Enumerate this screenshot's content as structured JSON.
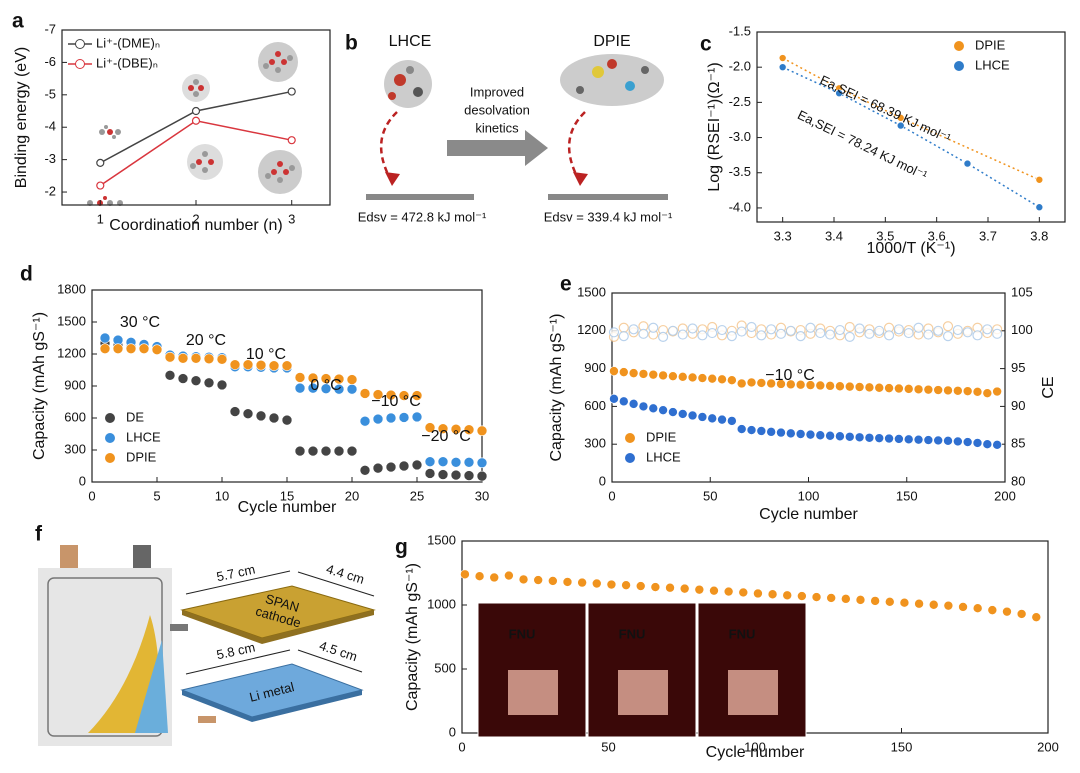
{
  "chart_data": [
    {
      "type": "line",
      "label": "a",
      "ylabel": "Binding energy (eV)",
      "xlabel": "Coordination number (n)",
      "xlim": [
        0.6,
        3.4
      ],
      "xticks": [
        1,
        2,
        3
      ],
      "ylim": [
        -1.6,
        -7
      ],
      "yticks": [
        -2,
        -3,
        -4,
        -5,
        -6,
        -7
      ],
      "legend": "upper left",
      "series": [
        {
          "name": "Li⁺-(DME)ₙ",
          "color": "#444444",
          "marker": "open",
          "x": [
            1,
            2,
            3
          ],
          "values": [
            -2.9,
            -4.5,
            -5.1
          ]
        },
        {
          "name": "Li⁺-(DBE)ₙ",
          "color": "#d9363e",
          "marker": "open",
          "x": [
            1,
            2,
            3
          ],
          "values": [
            -2.2,
            -4.2,
            -3.6
          ]
        }
      ]
    },
    {
      "type": "scatter",
      "label": "c",
      "ylabel": "Log (RSEI⁻¹)(Ω⁻¹)",
      "xlabel": "1000/T (K⁻¹)",
      "xlim": [
        3.25,
        3.85
      ],
      "xticks": [
        3.3,
        3.4,
        3.5,
        3.6,
        3.7,
        3.8
      ],
      "ylim": [
        -4.2,
        -1.5
      ],
      "yticks": [
        {
          "value": -4,
          "label": "-4.0"
        },
        -3.5,
        {
          "value": -3,
          "label": "-3.0"
        },
        -2.5,
        {
          "value": -2,
          "label": "-2.0"
        },
        -1.5
      ],
      "fit_line": true,
      "legend": "upper right",
      "annotations": [
        "Ea,SEI = 68.39 KJ mol⁻¹",
        "Ea,SEI = 78.24 KJ mol⁻¹"
      ],
      "series": [
        {
          "name": "DPIE",
          "color": "#f0931e",
          "x": [
            3.3,
            3.41,
            3.53,
            3.8
          ],
          "values": [
            -1.87,
            -2.3,
            -2.72,
            -3.6
          ]
        },
        {
          "name": "LHCE",
          "color": "#2f7cc9",
          "x": [
            3.3,
            3.41,
            3.53,
            3.66,
            3.8
          ],
          "values": [
            -2.0,
            -2.37,
            -2.83,
            -3.37,
            -3.99
          ]
        }
      ]
    },
    {
      "type": "scatter",
      "label": "d",
      "ylabel": "Capacity (mAh gS⁻¹)",
      "xlabel": "Cycle number",
      "xlim": [
        0,
        30
      ],
      "xticks": [
        0,
        5,
        10,
        15,
        20,
        25,
        30
      ],
      "ylim": [
        0,
        1800
      ],
      "yticks": [
        0,
        300,
        600,
        900,
        1200,
        1500,
        1800
      ],
      "legend": "lower left",
      "annotations": [
        "30 °C",
        "20 °C",
        "10 °C",
        "0 °C",
        "−10 °C",
        "−20 °C"
      ],
      "x": [
        1,
        2,
        3,
        4,
        5,
        6,
        7,
        8,
        9,
        10,
        11,
        12,
        13,
        14,
        15,
        16,
        17,
        18,
        19,
        20,
        21,
        22,
        23,
        24,
        25,
        26,
        27,
        28,
        29,
        30
      ],
      "series": [
        {
          "name": "DE",
          "color": "#444444",
          "values": [
            1300,
            1280,
            1270,
            1260,
            1250,
            1000,
            970,
            950,
            930,
            910,
            660,
            640,
            620,
            600,
            580,
            290,
            290,
            290,
            290,
            290,
            110,
            130,
            140,
            150,
            160,
            80,
            70,
            65,
            60,
            55
          ]
        },
        {
          "name": "LHCE",
          "color": "#3a8fdc",
          "values": [
            1350,
            1330,
            1310,
            1290,
            1270,
            1190,
            1180,
            1175,
            1170,
            1165,
            1080,
            1080,
            1075,
            1070,
            1070,
            880,
            880,
            875,
            870,
            870,
            570,
            590,
            600,
            605,
            610,
            190,
            190,
            185,
            185,
            180
          ]
        },
        {
          "name": "DPIE",
          "color": "#f0931e",
          "values": [
            1250,
            1250,
            1250,
            1250,
            1240,
            1170,
            1160,
            1160,
            1155,
            1150,
            1100,
            1100,
            1095,
            1090,
            1090,
            980,
            975,
            970,
            965,
            960,
            830,
            820,
            815,
            810,
            810,
            510,
            500,
            495,
            490,
            480
          ]
        }
      ]
    },
    {
      "type": "scatter",
      "label": "e",
      "ylabel": "Capacity (mAh gS⁻¹)",
      "xlabel": "Cycle number",
      "y2label": "CE",
      "xlim": [
        0,
        200
      ],
      "xticks": [
        0,
        50,
        100,
        150,
        200
      ],
      "ylim": [
        0,
        1500
      ],
      "yticks": [
        0,
        300,
        600,
        900,
        1200,
        1500
      ],
      "y2lim": [
        80,
        105
      ],
      "y2ticks": [
        80,
        85,
        90,
        95,
        100,
        105
      ],
      "legend": "lower left",
      "annotations": [
        "−10 °C"
      ],
      "x": [
        1,
        6,
        11,
        16,
        21,
        26,
        31,
        36,
        41,
        46,
        51,
        56,
        61,
        66,
        71,
        76,
        81,
        86,
        91,
        96,
        101,
        106,
        111,
        116,
        121,
        126,
        131,
        136,
        141,
        146,
        151,
        156,
        161,
        166,
        171,
        176,
        181,
        186,
        191,
        196
      ],
      "series": [
        {
          "color": "#f5c48a",
          "marker": "open",
          "axis": "y2",
          "values": [
            99.2,
            100.4,
            99.8,
            100.6,
            99.5,
            100.1,
            99.9,
            100.3,
            99.6,
            100.2,
            100.5,
            99.4,
            100.0,
            100.7,
            99.7,
            100.2,
            99.5,
            100.4,
            99.9,
            100.1,
            99.6,
            100.3,
            100.0,
            99.4,
            100.5,
            99.8,
            100.2,
            99.7,
            100.4,
            99.9,
            100.1,
            99.5,
            100.3,
            99.8,
            100.6,
            99.6,
            100.0,
            100.4,
            99.7,
            100.2
          ]
        },
        {
          "color": "#a9c8e8",
          "marker": "open",
          "axis": "y2",
          "values": [
            99.8,
            99.3,
            100.2,
            99.6,
            100.4,
            99.2,
            100.0,
            99.5,
            100.3,
            99.4,
            99.7,
            100.1,
            99.3,
            99.9,
            100.5,
            99.4,
            100.2,
            99.6,
            100.0,
            99.3,
            100.4,
            99.7,
            99.5,
            100.1,
            99.2,
            100.3,
            99.6,
            100.0,
            99.4,
            100.2,
            99.7,
            100.4,
            99.5,
            100.0,
            99.3,
            100.1,
            99.8,
            99.4,
            100.2,
            99.6
          ]
        },
        {
          "name": "DPIE",
          "color": "#f0931e",
          "values": [
            880,
            872,
            864,
            858,
            852,
            846,
            840,
            835,
            830,
            825,
            820,
            815,
            808,
            782,
            790,
            786,
            782,
            778,
            775,
            772,
            769,
            766,
            763,
            760,
            757,
            754,
            751,
            748,
            745,
            742,
            739,
            736,
            733,
            730,
            727,
            724,
            721,
            716,
            705,
            718
          ]
        },
        {
          "name": "LHCE",
          "color": "#2f6fd0",
          "values": [
            660,
            640,
            620,
            600,
            585,
            570,
            555,
            540,
            528,
            516,
            505,
            495,
            485,
            420,
            412,
            405,
            398,
            392,
            386,
            381,
            376,
            371,
            367,
            363,
            359,
            355,
            351,
            348,
            345,
            342,
            339,
            336,
            333,
            330,
            327,
            322,
            317,
            310,
            300,
            295
          ]
        }
      ]
    },
    {
      "type": "scatter",
      "label": "g",
      "ylabel": "Capacity (mAh gS⁻¹)",
      "xlabel": "Cycle number",
      "xlim": [
        0,
        200
      ],
      "xticks": [
        0,
        50,
        100,
        150,
        200
      ],
      "ylim": [
        0,
        1500
      ],
      "yticks": [
        0,
        500,
        1000,
        1500
      ],
      "insets": [
        "FNU",
        "FNU",
        "FNU"
      ],
      "x": [
        1,
        6,
        11,
        16,
        21,
        26,
        31,
        36,
        41,
        46,
        51,
        56,
        61,
        66,
        71,
        76,
        81,
        86,
        91,
        96,
        101,
        106,
        111,
        116,
        121,
        126,
        131,
        136,
        141,
        146,
        151,
        156,
        161,
        166,
        171,
        176,
        181,
        186,
        191,
        196
      ],
      "series": [
        {
          "color": "#f0931e",
          "values": [
            1240,
            1225,
            1215,
            1230,
            1200,
            1195,
            1188,
            1180,
            1175,
            1168,
            1160,
            1155,
            1148,
            1140,
            1135,
            1128,
            1120,
            1112,
            1105,
            1098,
            1090,
            1084,
            1076,
            1070,
            1062,
            1055,
            1048,
            1040,
            1032,
            1025,
            1018,
            1010,
            1002,
            995,
            985,
            975,
            960,
            948,
            930,
            905
          ]
        }
      ]
    }
  ],
  "diagrams": {
    "b": {
      "label": "b",
      "left_title": "LHCE",
      "right_title": "DPIE",
      "arrow_text": [
        "Improved",
        "desolvation",
        "kinetics"
      ],
      "left_energy": "Edsv = 472.8 kJ mol⁻¹",
      "right_energy": "Edsv = 339.4 kJ mol⁻¹"
    },
    "f": {
      "label": "f",
      "cathode": {
        "length": "5.7 cm",
        "width": "4.4 cm",
        "name": [
          "SPAN",
          "cathode"
        ]
      },
      "anode": {
        "length": "5.8 cm",
        "width": "4.5 cm",
        "name": [
          "Li metal"
        ]
      }
    }
  }
}
